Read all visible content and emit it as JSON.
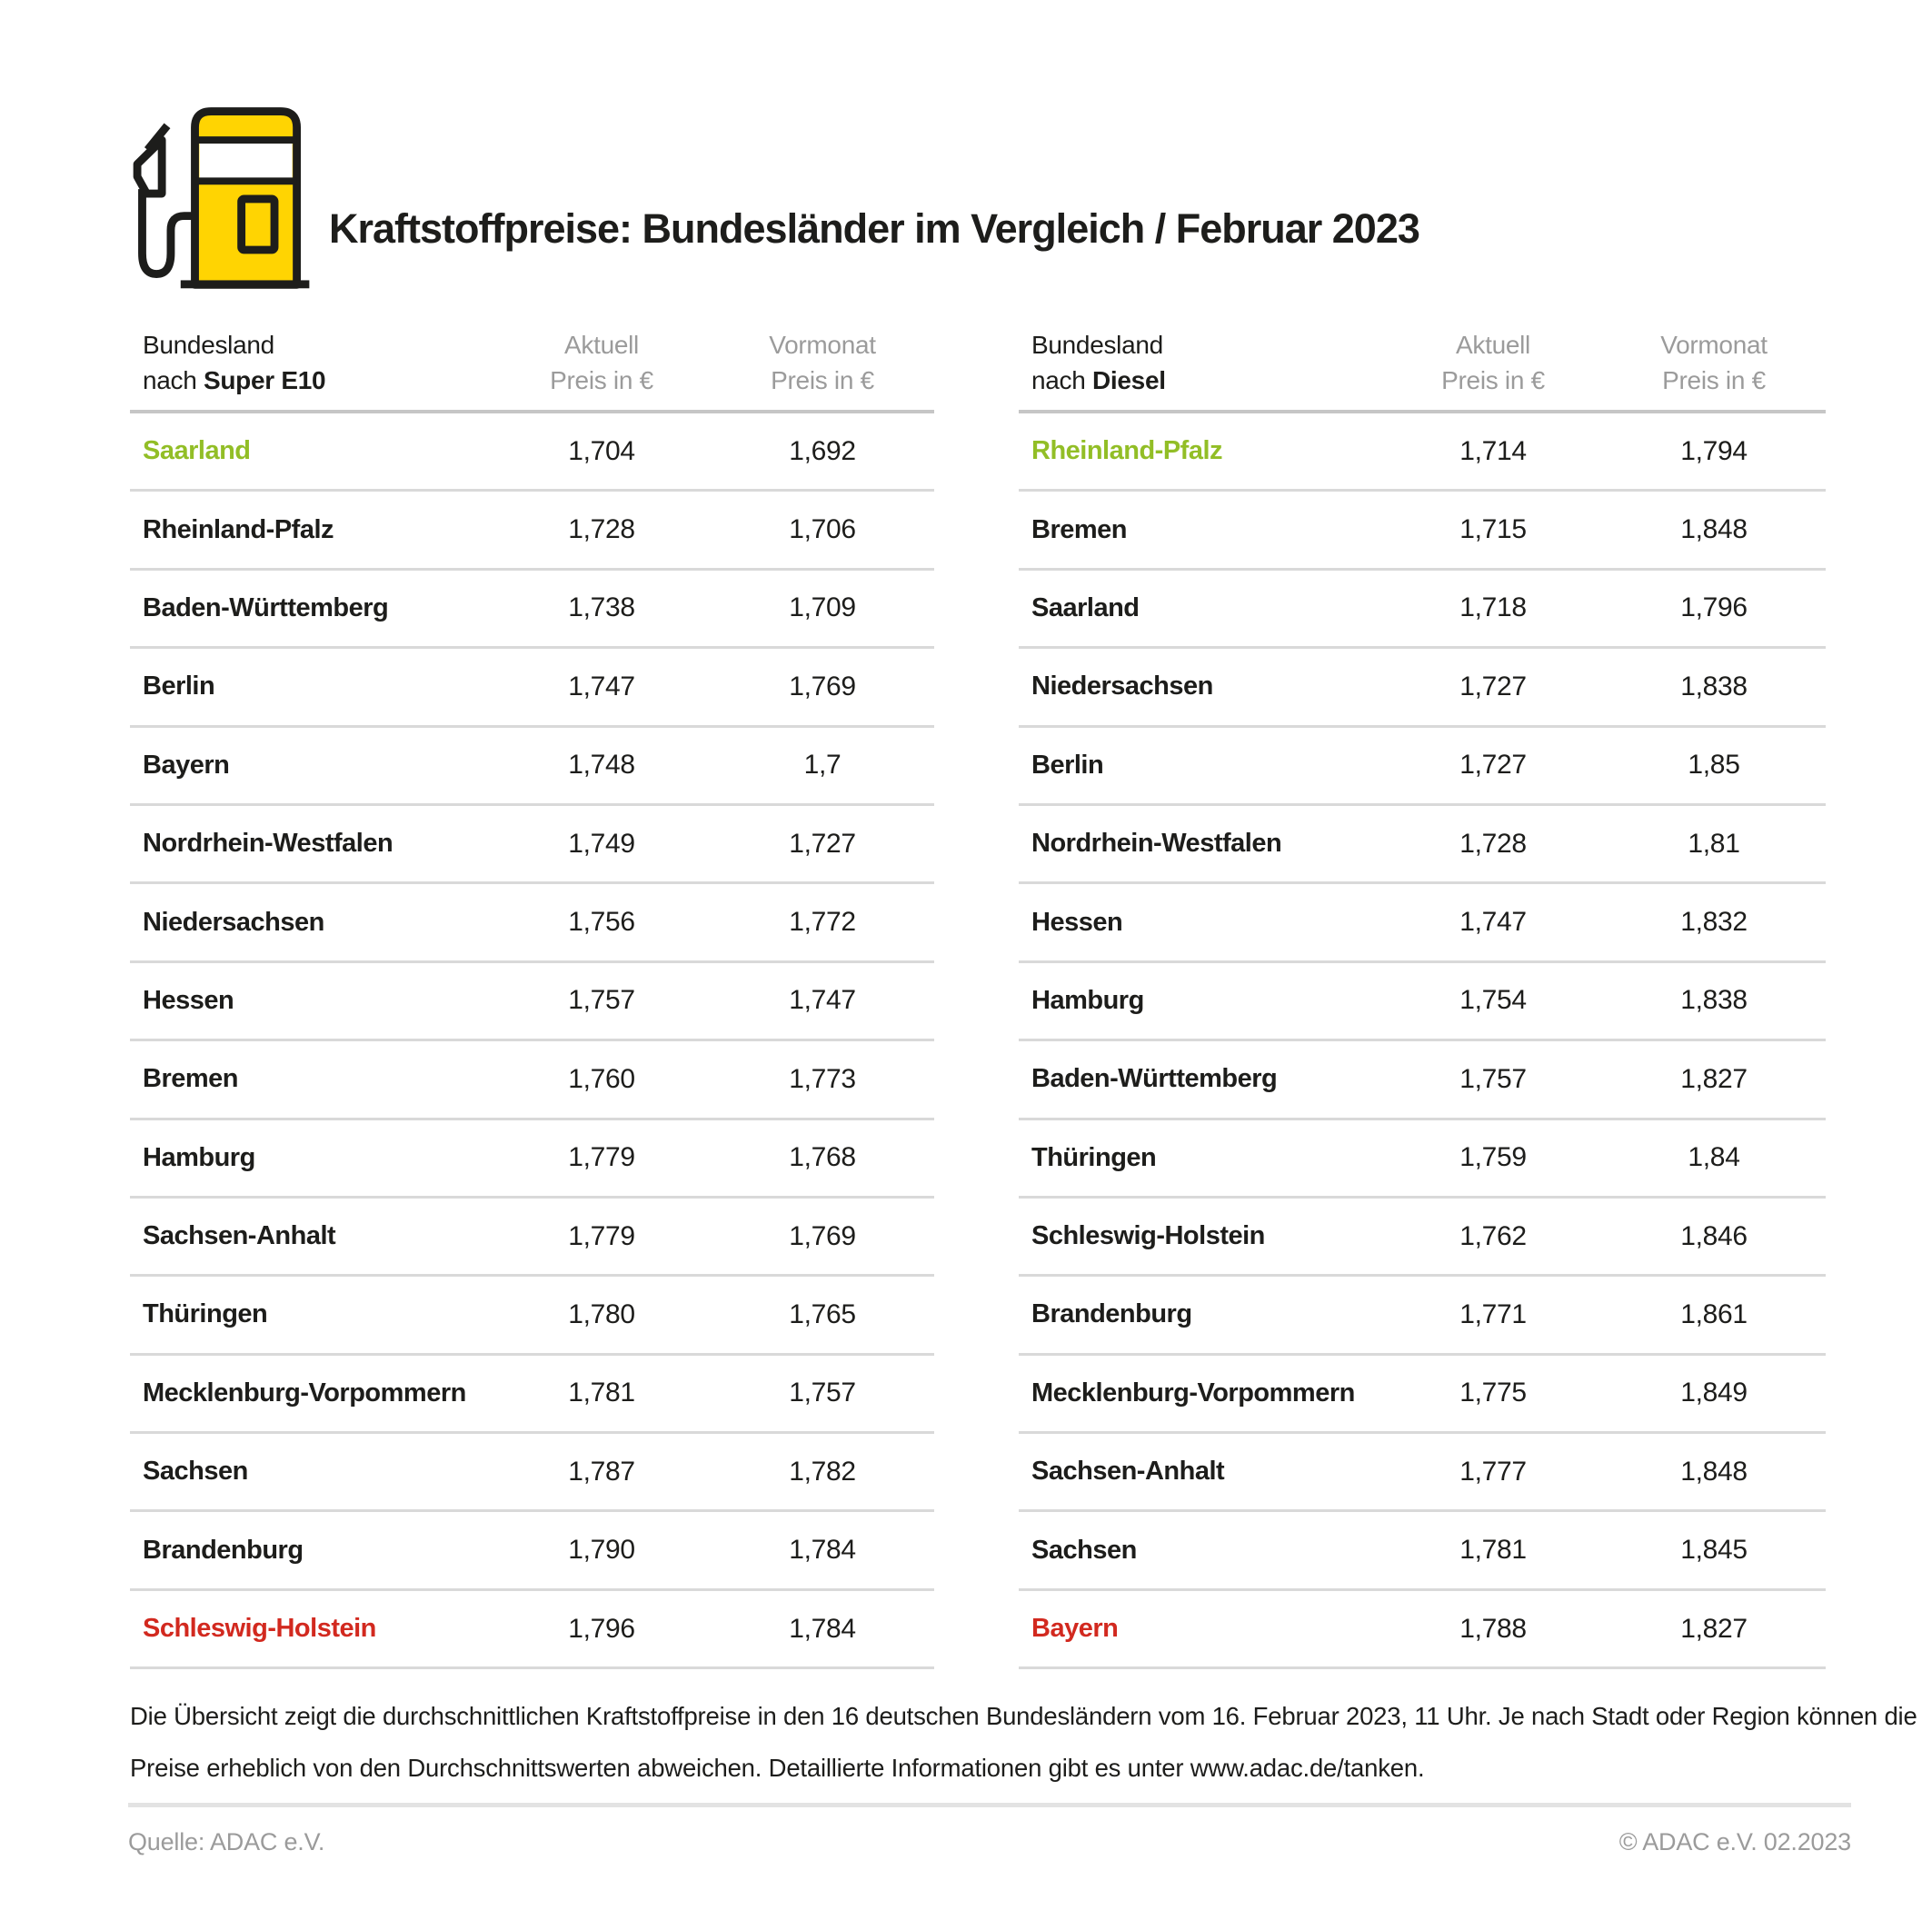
{
  "title": "Kraftstoffpreise: Bundesländer im Vergleich / Februar 2023",
  "icon": {
    "name": "fuel-pump",
    "yellow": "#FFD402",
    "outline": "#1D1D1B"
  },
  "colors": {
    "best_green": "#92BE26",
    "worst_red": "#D2291F",
    "header_gray": "#9B9B9B",
    "row_line": "#D9D9D9",
    "header_line": "#C6C6C6",
    "footer_line": "#E3E3E3",
    "text_dark": "#1D1D1B"
  },
  "chart_data": [
    {
      "type": "table",
      "title": "Bundesland nach Super E10",
      "header": {
        "col1_line1": "Bundesland",
        "col1_line2_prefix": "nach ",
        "col1_line2_fuel": "Super E10",
        "col2_line1": "Aktuell",
        "col2_line2": "Preis in €",
        "col3_line1": "Vormonat",
        "col3_line2": "Preis in €"
      },
      "rows": [
        {
          "bundesland": "Saarland",
          "aktuell": "1,704",
          "vormonat": "1,692",
          "highlight": "best"
        },
        {
          "bundesland": "Rheinland-Pfalz",
          "aktuell": "1,728",
          "vormonat": "1,706",
          "highlight": ""
        },
        {
          "bundesland": "Baden-Württemberg",
          "aktuell": "1,738",
          "vormonat": "1,709",
          "highlight": ""
        },
        {
          "bundesland": "Berlin",
          "aktuell": "1,747",
          "vormonat": "1,769",
          "highlight": ""
        },
        {
          "bundesland": "Bayern",
          "aktuell": "1,748",
          "vormonat": "1,7",
          "highlight": ""
        },
        {
          "bundesland": "Nordrhein-Westfalen",
          "aktuell": "1,749",
          "vormonat": "1,727",
          "highlight": ""
        },
        {
          "bundesland": "Niedersachsen",
          "aktuell": "1,756",
          "vormonat": "1,772",
          "highlight": ""
        },
        {
          "bundesland": "Hessen",
          "aktuell": "1,757",
          "vormonat": "1,747",
          "highlight": ""
        },
        {
          "bundesland": "Bremen",
          "aktuell": "1,760",
          "vormonat": "1,773",
          "highlight": ""
        },
        {
          "bundesland": "Hamburg",
          "aktuell": "1,779",
          "vormonat": "1,768",
          "highlight": ""
        },
        {
          "bundesland": "Sachsen-Anhalt",
          "aktuell": "1,779",
          "vormonat": "1,769",
          "highlight": ""
        },
        {
          "bundesland": "Thüringen",
          "aktuell": "1,780",
          "vormonat": "1,765",
          "highlight": ""
        },
        {
          "bundesland": "Mecklenburg-Vorpommern",
          "aktuell": "1,781",
          "vormonat": "1,757",
          "highlight": ""
        },
        {
          "bundesland": "Sachsen",
          "aktuell": "1,787",
          "vormonat": "1,782",
          "highlight": ""
        },
        {
          "bundesland": "Brandenburg",
          "aktuell": "1,790",
          "vormonat": "1,784",
          "highlight": ""
        },
        {
          "bundesland": "Schleswig-Holstein",
          "aktuell": "1,796",
          "vormonat": "1,784",
          "highlight": "worst"
        }
      ]
    },
    {
      "type": "table",
      "title": "Bundesland nach Diesel",
      "header": {
        "col1_line1": "Bundesland",
        "col1_line2_prefix": "nach ",
        "col1_line2_fuel": "Diesel",
        "col2_line1": "Aktuell",
        "col2_line2": "Preis in €",
        "col3_line1": "Vormonat",
        "col3_line2": "Preis in €"
      },
      "rows": [
        {
          "bundesland": "Rheinland-Pfalz",
          "aktuell": "1,714",
          "vormonat": "1,794",
          "highlight": "best"
        },
        {
          "bundesland": "Bremen",
          "aktuell": "1,715",
          "vormonat": "1,848",
          "highlight": ""
        },
        {
          "bundesland": "Saarland",
          "aktuell": "1,718",
          "vormonat": "1,796",
          "highlight": ""
        },
        {
          "bundesland": "Niedersachsen",
          "aktuell": "1,727",
          "vormonat": "1,838",
          "highlight": ""
        },
        {
          "bundesland": "Berlin",
          "aktuell": "1,727",
          "vormonat": "1,85",
          "highlight": ""
        },
        {
          "bundesland": "Nordrhein-Westfalen",
          "aktuell": "1,728",
          "vormonat": "1,81",
          "highlight": ""
        },
        {
          "bundesland": "Hessen",
          "aktuell": "1,747",
          "vormonat": "1,832",
          "highlight": ""
        },
        {
          "bundesland": "Hamburg",
          "aktuell": "1,754",
          "vormonat": "1,838",
          "highlight": ""
        },
        {
          "bundesland": "Baden-Württemberg",
          "aktuell": "1,757",
          "vormonat": "1,827",
          "highlight": ""
        },
        {
          "bundesland": "Thüringen",
          "aktuell": "1,759",
          "vormonat": "1,84",
          "highlight": ""
        },
        {
          "bundesland": "Schleswig-Holstein",
          "aktuell": "1,762",
          "vormonat": "1,846",
          "highlight": ""
        },
        {
          "bundesland": "Brandenburg",
          "aktuell": "1,771",
          "vormonat": "1,861",
          "highlight": ""
        },
        {
          "bundesland": "Mecklenburg-Vorpommern",
          "aktuell": "1,775",
          "vormonat": "1,849",
          "highlight": ""
        },
        {
          "bundesland": "Sachsen-Anhalt",
          "aktuell": "1,777",
          "vormonat": "1,848",
          "highlight": ""
        },
        {
          "bundesland": "Sachsen",
          "aktuell": "1,781",
          "vormonat": "1,845",
          "highlight": ""
        },
        {
          "bundesland": "Bayern",
          "aktuell": "1,788",
          "vormonat": "1,827",
          "highlight": "worst"
        }
      ]
    }
  ],
  "footnote": {
    "line1": "Die Übersicht zeigt die durchschnittlichen Kraftstoffpreise in den 16 deutschen Bundesländern vom 16. Februar 2023, 11 Uhr. Je nach Stadt oder Region können die",
    "line2": "Preise erheblich von den Durchschnittswerten abweichen. Detaillierte Informationen gibt es unter www.adac.de/tanken."
  },
  "footer": {
    "source": "Quelle: ADAC e.V.",
    "copyright": "© ADAC e.V. 02.2023"
  }
}
